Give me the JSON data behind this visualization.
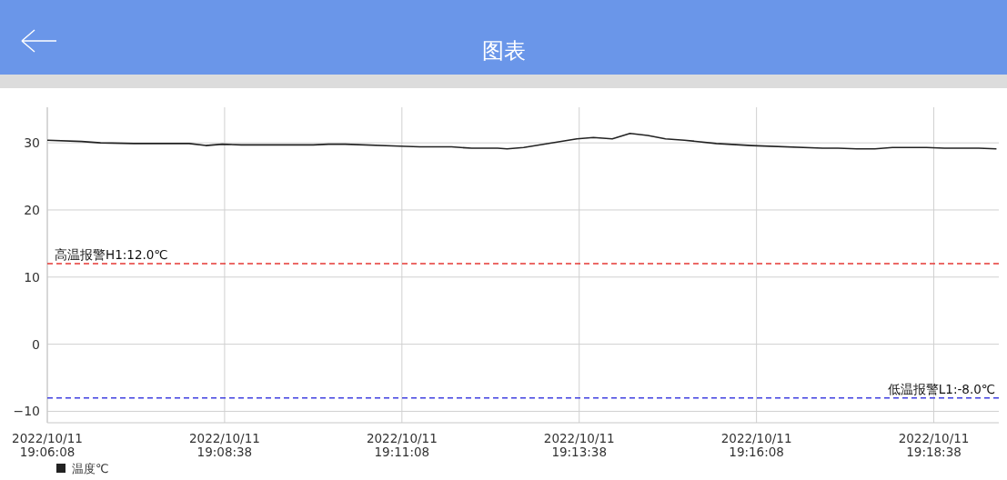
{
  "chart_data": {
    "type": "line",
    "title": "图表",
    "series": [
      {
        "name": "温度℃",
        "color": "#222222",
        "x": [
          "2022-10-11T19:06:08",
          "2022-10-11T19:06:37",
          "2022-10-11T19:06:53",
          "2022-10-11T19:07:21",
          "2022-10-11T19:08:08",
          "2022-10-11T19:08:22",
          "2022-10-11T19:08:36",
          "2022-10-11T19:08:52",
          "2022-10-11T19:09:53",
          "2022-10-11T19:10:06",
          "2022-10-11T19:10:20",
          "2022-10-11T19:11:06",
          "2022-10-11T19:11:23",
          "2022-10-11T19:11:50",
          "2022-10-11T19:12:07",
          "2022-10-11T19:12:29",
          "2022-10-11T19:12:37",
          "2022-10-11T19:12:51",
          "2022-10-11T19:13:36",
          "2022-10-11T19:13:50",
          "2022-10-11T19:14:06",
          "2022-10-11T19:14:21",
          "2022-10-11T19:14:36",
          "2022-10-11T19:14:51",
          "2022-10-11T19:15:07",
          "2022-10-11T19:15:34",
          "2022-10-11T19:16:04",
          "2022-10-11T19:17:04",
          "2022-10-11T19:17:17",
          "2022-10-11T19:17:33",
          "2022-10-11T19:17:48",
          "2022-10-11T19:18:03",
          "2022-10-11T19:18:32",
          "2022-10-11T19:18:47",
          "2022-10-11T19:19:16",
          "2022-10-11T19:19:31"
        ],
        "values": [
          30.4,
          30.2,
          30.0,
          29.9,
          29.9,
          29.6,
          29.8,
          29.7,
          29.7,
          29.8,
          29.8,
          29.5,
          29.4,
          29.4,
          29.2,
          29.2,
          29.1,
          29.3,
          30.6,
          30.8,
          30.6,
          31.4,
          31.1,
          30.6,
          30.4,
          29.9,
          29.6,
          29.2,
          29.2,
          29.1,
          29.1,
          29.3,
          29.3,
          29.2,
          29.2,
          29.1
        ]
      }
    ],
    "xlim": [
      "2022-10-11T19:06:08",
      "2022-10-11T19:19:33"
    ],
    "xticks": [
      {
        "value": "2022-10-11T19:06:08",
        "label": "2022/10/11 19:06:08"
      },
      {
        "value": "2022-10-11T19:08:38",
        "label": "2022/10/11 19:08:38"
      },
      {
        "value": "2022-10-11T19:11:08",
        "label": "2022/10/11 19:11:08"
      },
      {
        "value": "2022-10-11T19:13:38",
        "label": "2022/10/11 19:13:38"
      },
      {
        "value": "2022-10-11T19:16:08",
        "label": "2022/10/11 19:16:08"
      },
      {
        "value": "2022-10-11T19:18:38",
        "label": "2022/10/11 19:18:38"
      }
    ],
    "ylim": [
      -11.7,
      35.3
    ],
    "yticks": [
      -10,
      0,
      10,
      20,
      30
    ],
    "ref_lines": [
      {
        "axis": "y",
        "value": 12,
        "label": "高温报警H1:12.0℃",
        "color": "#e53935",
        "line_style": "dashed"
      },
      {
        "axis": "y",
        "value": -8,
        "label": "低温报警L1:-8.0℃",
        "color": "#3f3fe0",
        "line_style": "dashed"
      }
    ],
    "grid": true,
    "legend": "bottom left",
    "marker": "none",
    "line_style": "solid"
  }
}
